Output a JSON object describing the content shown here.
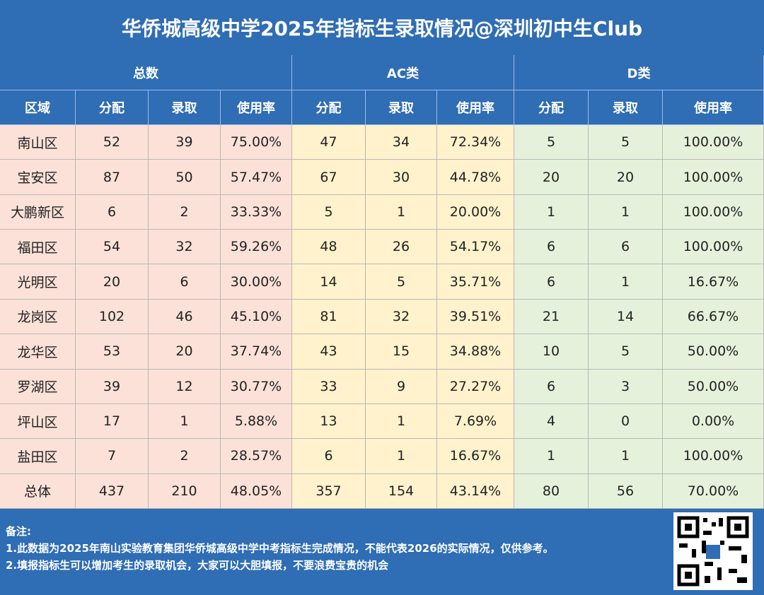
{
  "title": "华侨城高级中学2025年指标生录取情况@深圳初中生Club",
  "table": {
    "groups": [
      "总数",
      "AC类",
      "D类"
    ],
    "columns": [
      "区域",
      "分配",
      "录取",
      "使用率",
      "分配",
      "录取",
      "使用率",
      "分配",
      "录取",
      "使用率"
    ],
    "rows": [
      [
        "南山区",
        "52",
        "39",
        "75.00%",
        "47",
        "34",
        "72.34%",
        "5",
        "5",
        "100.00%"
      ],
      [
        "宝安区",
        "87",
        "50",
        "57.47%",
        "67",
        "30",
        "44.78%",
        "20",
        "20",
        "100.00%"
      ],
      [
        "大鹏新区",
        "6",
        "2",
        "33.33%",
        "5",
        "1",
        "20.00%",
        "1",
        "1",
        "100.00%"
      ],
      [
        "福田区",
        "54",
        "32",
        "59.26%",
        "48",
        "26",
        "54.17%",
        "6",
        "6",
        "100.00%"
      ],
      [
        "光明区",
        "20",
        "6",
        "30.00%",
        "14",
        "5",
        "35.71%",
        "6",
        "1",
        "16.67%"
      ],
      [
        "龙岗区",
        "102",
        "46",
        "45.10%",
        "81",
        "32",
        "39.51%",
        "21",
        "14",
        "66.67%"
      ],
      [
        "龙华区",
        "53",
        "20",
        "37.74%",
        "43",
        "15",
        "34.88%",
        "10",
        "5",
        "50.00%"
      ],
      [
        "罗湖区",
        "39",
        "12",
        "30.77%",
        "33",
        "9",
        "27.27%",
        "6",
        "3",
        "50.00%"
      ],
      [
        "坪山区",
        "17",
        "1",
        "5.88%",
        "13",
        "1",
        "7.69%",
        "4",
        "0",
        "0.00%"
      ],
      [
        "盐田区",
        "7",
        "2",
        "28.57%",
        "6",
        "1",
        "16.67%",
        "1",
        "1",
        "100.00%"
      ],
      [
        "总体",
        "437",
        "210",
        "48.05%",
        "357",
        "154",
        "43.14%",
        "80",
        "56",
        "70.00%"
      ]
    ]
  },
  "notes": {
    "label": "备注:",
    "lines": [
      "1.此数据为2025年南山实验教育集团华侨城高级中学中考指标生完成情况，不能代表2026的实际情况，仅供参考。",
      "2.填报指标生可以增加考生的录取机会，大家可以大胆填报，不要浪费宝贵的机会"
    ]
  }
}
